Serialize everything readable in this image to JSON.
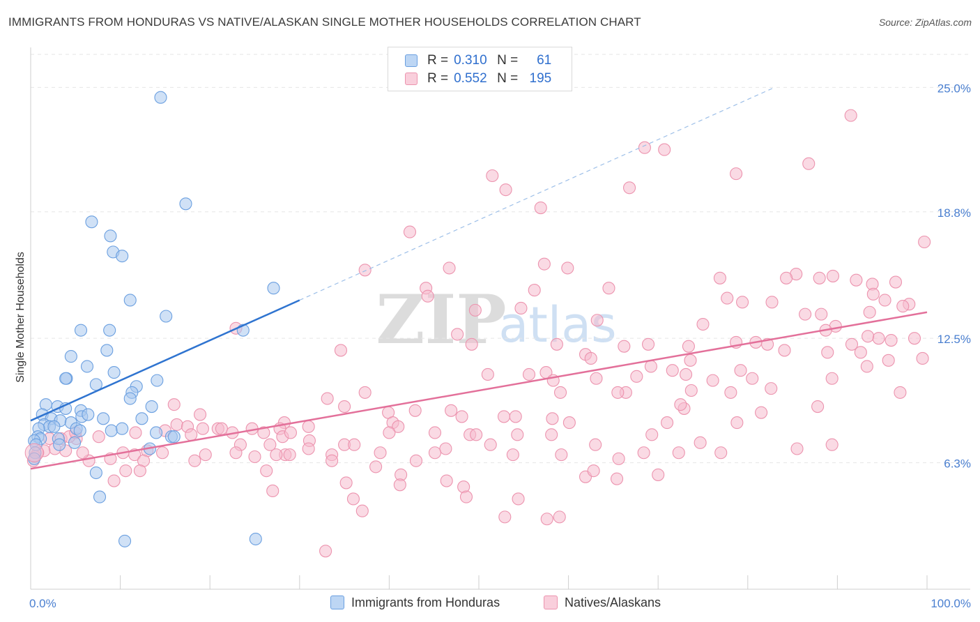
{
  "title": "IMMIGRANTS FROM HONDURAS VS NATIVE/ALASKAN SINGLE MOTHER HOUSEHOLDS CORRELATION CHART",
  "source": "Source: ZipAtlas.com",
  "legend_top": {
    "series1": {
      "r_label": "R =",
      "r_value": "0.310",
      "n_label": "N =",
      "n_value": "61"
    },
    "series2": {
      "r_label": "R =",
      "r_value": "0.552",
      "n_label": "N =",
      "n_value": "195"
    }
  },
  "colors": {
    "blue_fill": "#a9c9ef",
    "blue_stroke": "#6a9fe0",
    "blue_line": "#2f74d0",
    "pink_fill": "#f6bccd",
    "pink_stroke": "#ec93ae",
    "pink_line": "#e3709a",
    "tick_label": "#4a7fd0",
    "grid": "#e6e6e6"
  },
  "chart_data": {
    "type": "scatter",
    "title": "IMMIGRANTS FROM HONDURAS VS NATIVE/ALASKAN SINGLE MOTHER HOUSEHOLDS CORRELATION CHART",
    "xlabel": "",
    "ylabel": "Single Mother Households",
    "xlim": [
      0,
      100
    ],
    "ylim": [
      0,
      27.2
    ],
    "x_tick_labels": [
      "0.0%",
      "100.0%"
    ],
    "y_ticks": [
      6.3,
      12.5,
      18.8,
      25.0
    ],
    "y_tick_labels": [
      "6.3%",
      "12.5%",
      "18.8%",
      "25.0%"
    ],
    "grid": true,
    "watermark": {
      "zip": "ZIP",
      "atlas": "atlas"
    },
    "series": [
      {
        "name": "Immigrants from Honduras",
        "color": "#a9c9ef",
        "R": 0.31,
        "N": 61,
        "trend": {
          "x0": 0,
          "y0": 8.4,
          "x1": 30,
          "y1": 14.4,
          "dashed_to_x": 83,
          "dashed_to_y": 25.0
        },
        "points": [
          [
            14.5,
            24.5
          ],
          [
            17.3,
            19.2
          ],
          [
            6.8,
            18.3
          ],
          [
            8.9,
            17.6
          ],
          [
            9.2,
            16.8
          ],
          [
            10.2,
            16.6
          ],
          [
            27.1,
            15.0
          ],
          [
            11.1,
            14.4
          ],
          [
            15.1,
            13.6
          ],
          [
            5.6,
            12.9
          ],
          [
            8.8,
            12.9
          ],
          [
            23.7,
            12.9
          ],
          [
            8.5,
            11.9
          ],
          [
            4.5,
            11.6
          ],
          [
            6.3,
            11.1
          ],
          [
            9.3,
            10.8
          ],
          [
            4.0,
            10.5
          ],
          [
            3.9,
            10.5
          ],
          [
            14.1,
            10.4
          ],
          [
            7.3,
            10.2
          ],
          [
            11.8,
            10.1
          ],
          [
            11.3,
            9.8
          ],
          [
            11.1,
            9.5
          ],
          [
            1.7,
            9.2
          ],
          [
            3.0,
            9.1
          ],
          [
            3.9,
            9.0
          ],
          [
            5.6,
            8.9
          ],
          [
            13.5,
            9.1
          ],
          [
            5.7,
            8.6
          ],
          [
            6.4,
            8.7
          ],
          [
            8.1,
            8.5
          ],
          [
            1.3,
            8.7
          ],
          [
            2.3,
            8.5
          ],
          [
            3.3,
            8.4
          ],
          [
            4.5,
            8.3
          ],
          [
            1.5,
            8.2
          ],
          [
            2.1,
            8.1
          ],
          [
            2.6,
            8.1
          ],
          [
            12.4,
            8.5
          ],
          [
            0.9,
            8.0
          ],
          [
            5.1,
            8.0
          ],
          [
            9.0,
            7.9
          ],
          [
            10.2,
            8.0
          ],
          [
            5.5,
            7.9
          ],
          [
            0.8,
            7.6
          ],
          [
            1.1,
            7.5
          ],
          [
            0.4,
            7.4
          ],
          [
            3.1,
            7.5
          ],
          [
            3.2,
            7.2
          ],
          [
            4.9,
            7.3
          ],
          [
            13.3,
            7.0
          ],
          [
            15.7,
            7.6
          ],
          [
            16.0,
            7.6
          ],
          [
            0.6,
            7.2
          ],
          [
            0.5,
            6.8
          ],
          [
            0.4,
            6.5
          ],
          [
            7.3,
            5.8
          ],
          [
            7.7,
            4.6
          ],
          [
            10.5,
            2.4
          ],
          [
            25.1,
            2.5
          ],
          [
            14.0,
            7.8
          ]
        ]
      },
      {
        "name": "Natives/Alaskans",
        "color": "#f6bccd",
        "R": 0.552,
        "N": 195,
        "trend": {
          "x0": 0,
          "y0": 6.0,
          "x1": 100,
          "y1": 13.8
        },
        "points": [
          [
            91.5,
            23.6
          ],
          [
            68.5,
            22.0
          ],
          [
            70.7,
            21.9
          ],
          [
            86.8,
            21.2
          ],
          [
            51.5,
            20.6
          ],
          [
            78.7,
            20.7
          ],
          [
            53.0,
            19.9
          ],
          [
            66.8,
            20.0
          ],
          [
            56.9,
            19.0
          ],
          [
            42.3,
            17.8
          ],
          [
            99.7,
            17.3
          ],
          [
            57.3,
            16.2
          ],
          [
            59.9,
            16.0
          ],
          [
            46.7,
            16.0
          ],
          [
            37.3,
            15.9
          ],
          [
            85.4,
            15.7
          ],
          [
            84.3,
            15.5
          ],
          [
            89.5,
            15.6
          ],
          [
            76.9,
            15.5
          ],
          [
            88.0,
            15.5
          ],
          [
            92.1,
            15.4
          ],
          [
            93.9,
            15.2
          ],
          [
            96.5,
            15.3
          ],
          [
            44.1,
            15.0
          ],
          [
            64.5,
            15.0
          ],
          [
            77.7,
            14.5
          ],
          [
            56.2,
            14.9
          ],
          [
            94.0,
            14.7
          ],
          [
            44.3,
            14.6
          ],
          [
            95.3,
            14.4
          ],
          [
            79.4,
            14.3
          ],
          [
            82.7,
            14.3
          ],
          [
            98.0,
            14.2
          ],
          [
            97.3,
            14.1
          ],
          [
            49.6,
            13.9
          ],
          [
            54.7,
            14.0
          ],
          [
            88.2,
            13.7
          ],
          [
            93.6,
            13.8
          ],
          [
            86.4,
            13.7
          ],
          [
            63.2,
            13.4
          ],
          [
            75.0,
            13.2
          ],
          [
            89.8,
            13.1
          ],
          [
            88.7,
            12.9
          ],
          [
            22.9,
            13.0
          ],
          [
            47.6,
            12.7
          ],
          [
            78.7,
            12.3
          ],
          [
            94.6,
            12.5
          ],
          [
            93.4,
            12.6
          ],
          [
            80.9,
            12.3
          ],
          [
            58.7,
            12.2
          ],
          [
            68.9,
            12.2
          ],
          [
            82.2,
            12.2
          ],
          [
            91.6,
            12.2
          ],
          [
            96.0,
            12.4
          ],
          [
            34.6,
            11.9
          ],
          [
            49.2,
            12.2
          ],
          [
            73.4,
            12.1
          ],
          [
            66.2,
            12.1
          ],
          [
            84.1,
            11.9
          ],
          [
            98.6,
            12.5
          ],
          [
            92.6,
            11.8
          ],
          [
            88.9,
            11.8
          ],
          [
            61.9,
            11.7
          ],
          [
            73.6,
            11.4
          ],
          [
            62.5,
            11.5
          ],
          [
            95.7,
            11.4
          ],
          [
            99.5,
            11.5
          ],
          [
            69.2,
            11.1
          ],
          [
            93.3,
            11.1
          ],
          [
            71.6,
            10.9
          ],
          [
            57.5,
            10.8
          ],
          [
            79.2,
            10.9
          ],
          [
            51.0,
            10.7
          ],
          [
            55.6,
            10.7
          ],
          [
            67.6,
            10.6
          ],
          [
            73.1,
            10.7
          ],
          [
            76.1,
            10.4
          ],
          [
            80.5,
            10.5
          ],
          [
            63.1,
            10.5
          ],
          [
            58.3,
            10.4
          ],
          [
            82.6,
            10.0
          ],
          [
            89.4,
            10.5
          ],
          [
            73.7,
            9.9
          ],
          [
            59.1,
            9.8
          ],
          [
            66.4,
            9.8
          ],
          [
            65.5,
            9.8
          ],
          [
            78.1,
            9.8
          ],
          [
            97.0,
            9.8
          ],
          [
            37.3,
            9.8
          ],
          [
            33.1,
            9.5
          ],
          [
            72.9,
            9.0
          ],
          [
            72.5,
            9.2
          ],
          [
            87.8,
            9.1
          ],
          [
            35.0,
            9.1
          ],
          [
            16.0,
            9.2
          ],
          [
            18.9,
            8.7
          ],
          [
            39.9,
            8.8
          ],
          [
            42.9,
            8.9
          ],
          [
            46.9,
            8.9
          ],
          [
            60.1,
            8.3
          ],
          [
            52.8,
            8.6
          ],
          [
            71.0,
            8.3
          ],
          [
            40.4,
            8.3
          ],
          [
            48.1,
            8.6
          ],
          [
            81.5,
            8.8
          ],
          [
            58.2,
            8.5
          ],
          [
            54.1,
            8.6
          ],
          [
            78.8,
            8.3
          ],
          [
            28.3,
            8.3
          ],
          [
            31.0,
            8.1
          ],
          [
            16.3,
            8.2
          ],
          [
            17.5,
            8.1
          ],
          [
            19.2,
            8.0
          ],
          [
            20.9,
            8.0
          ],
          [
            21.3,
            8.0
          ],
          [
            41.0,
            8.1
          ],
          [
            15.0,
            7.9
          ],
          [
            27.8,
            8.0
          ],
          [
            24.7,
            8.0
          ],
          [
            26.0,
            7.8
          ],
          [
            28.1,
            7.6
          ],
          [
            29.0,
            7.8
          ],
          [
            22.5,
            7.8
          ],
          [
            17.9,
            7.7
          ],
          [
            11.7,
            7.8
          ],
          [
            7.6,
            7.6
          ],
          [
            5.1,
            7.5
          ],
          [
            2.1,
            7.5
          ],
          [
            3.4,
            7.5
          ],
          [
            4.3,
            7.6
          ],
          [
            5.0,
            7.8
          ],
          [
            45.1,
            7.8
          ],
          [
            40.0,
            7.8
          ],
          [
            49.0,
            7.7
          ],
          [
            49.7,
            7.7
          ],
          [
            54.3,
            7.7
          ],
          [
            58.1,
            7.7
          ],
          [
            69.3,
            7.7
          ],
          [
            23.4,
            7.2
          ],
          [
            26.7,
            7.2
          ],
          [
            31.1,
            7.4
          ],
          [
            35.0,
            7.2
          ],
          [
            36.1,
            7.2
          ],
          [
            46.3,
            7.0
          ],
          [
            51.3,
            7.2
          ],
          [
            63.0,
            7.2
          ],
          [
            74.7,
            7.3
          ],
          [
            85.5,
            7.0
          ],
          [
            89.4,
            7.2
          ],
          [
            77.0,
            6.8
          ],
          [
            72.3,
            6.8
          ],
          [
            68.4,
            6.8
          ],
          [
            65.6,
            6.5
          ],
          [
            59.2,
            6.7
          ],
          [
            53.8,
            6.7
          ],
          [
            45.1,
            6.8
          ],
          [
            43.0,
            6.4
          ],
          [
            39.0,
            6.8
          ],
          [
            33.6,
            6.7
          ],
          [
            31.0,
            7.0
          ],
          [
            28.4,
            6.7
          ],
          [
            27.4,
            6.7
          ],
          [
            25.0,
            6.6
          ],
          [
            22.9,
            6.8
          ],
          [
            19.5,
            6.7
          ],
          [
            18.3,
            6.4
          ],
          [
            14.7,
            6.8
          ],
          [
            13.0,
            6.9
          ],
          [
            11.6,
            6.7
          ],
          [
            10.3,
            6.8
          ],
          [
            8.9,
            6.5
          ],
          [
            6.5,
            6.4
          ],
          [
            5.8,
            6.8
          ],
          [
            3.9,
            6.9
          ],
          [
            2.7,
            7.0
          ],
          [
            1.5,
            6.9
          ],
          [
            0.8,
            6.8
          ],
          [
            0.5,
            6.6
          ],
          [
            0.3,
            6.4
          ],
          [
            12.6,
            6.4
          ],
          [
            10.6,
            5.9
          ],
          [
            12.2,
            5.9
          ],
          [
            9.3,
            5.4
          ],
          [
            26.3,
            5.9
          ],
          [
            33.6,
            6.4
          ],
          [
            38.5,
            6.1
          ],
          [
            41.3,
            5.7
          ],
          [
            46.4,
            5.4
          ],
          [
            48.3,
            5.1
          ],
          [
            54.4,
            4.5
          ],
          [
            57.6,
            3.5
          ],
          [
            52.9,
            3.6
          ],
          [
            61.9,
            5.6
          ],
          [
            65.4,
            5.5
          ],
          [
            70.0,
            5.7
          ],
          [
            36.0,
            4.5
          ],
          [
            27.0,
            4.9
          ],
          [
            35.2,
            5.3
          ],
          [
            41.2,
            5.2
          ],
          [
            48.6,
            4.6
          ],
          [
            37.0,
            3.9
          ],
          [
            28.9,
            6.7
          ],
          [
            32.9,
            1.9
          ],
          [
            59.0,
            3.6
          ],
          [
            62.8,
            5.9
          ]
        ]
      }
    ]
  },
  "x_labels": {
    "left": "0.0%",
    "right": "100.0%"
  },
  "bottom_legend": {
    "item1": "Immigrants from Honduras",
    "item2": "Natives/Alaskans"
  }
}
